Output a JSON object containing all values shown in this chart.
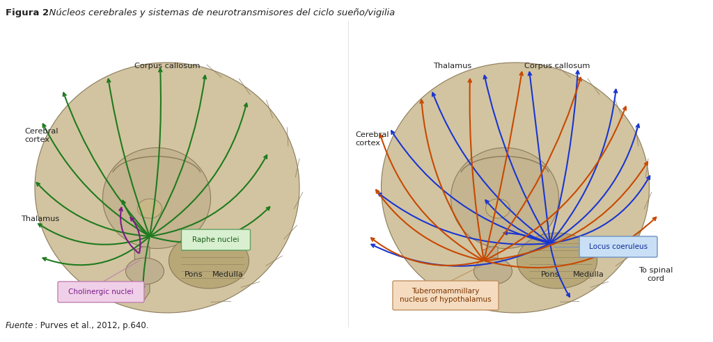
{
  "title_bold": "Figura 2",
  "title_italic": ". Núcleos cerebrales y sistemas de neurotransmisores del ciclo sueño/vigilia",
  "source_italic": "Fuente",
  "source_rest": ": Purves et al., 2012, p.640.",
  "bg_color": "#ffffff",
  "fig_width": 10.24,
  "fig_height": 4.92,
  "cholinergic_box_facecolor": "#f0d0e8",
  "cholinergic_box_edgecolor": "#c080b0",
  "raphe_box_facecolor": "#d8f0d0",
  "raphe_box_edgecolor": "#60a060",
  "locus_box_facecolor": "#c8dff5",
  "locus_box_edgecolor": "#7090c0",
  "tubero_box_facecolor": "#f5dcc0",
  "tubero_box_edgecolor": "#c09060",
  "text_color": "#222222",
  "arrow_green": "#1e7a1e",
  "arrow_purple": "#7a1a8a",
  "arrow_blue": "#1a35d0",
  "arrow_orange": "#c84800",
  "brain_tan": "#d2c4a0",
  "brain_dark": "#b8a880",
  "brain_inner": "#c4b490",
  "brain_stem": "#bfb090",
  "brain_cereb": "#b8a878"
}
